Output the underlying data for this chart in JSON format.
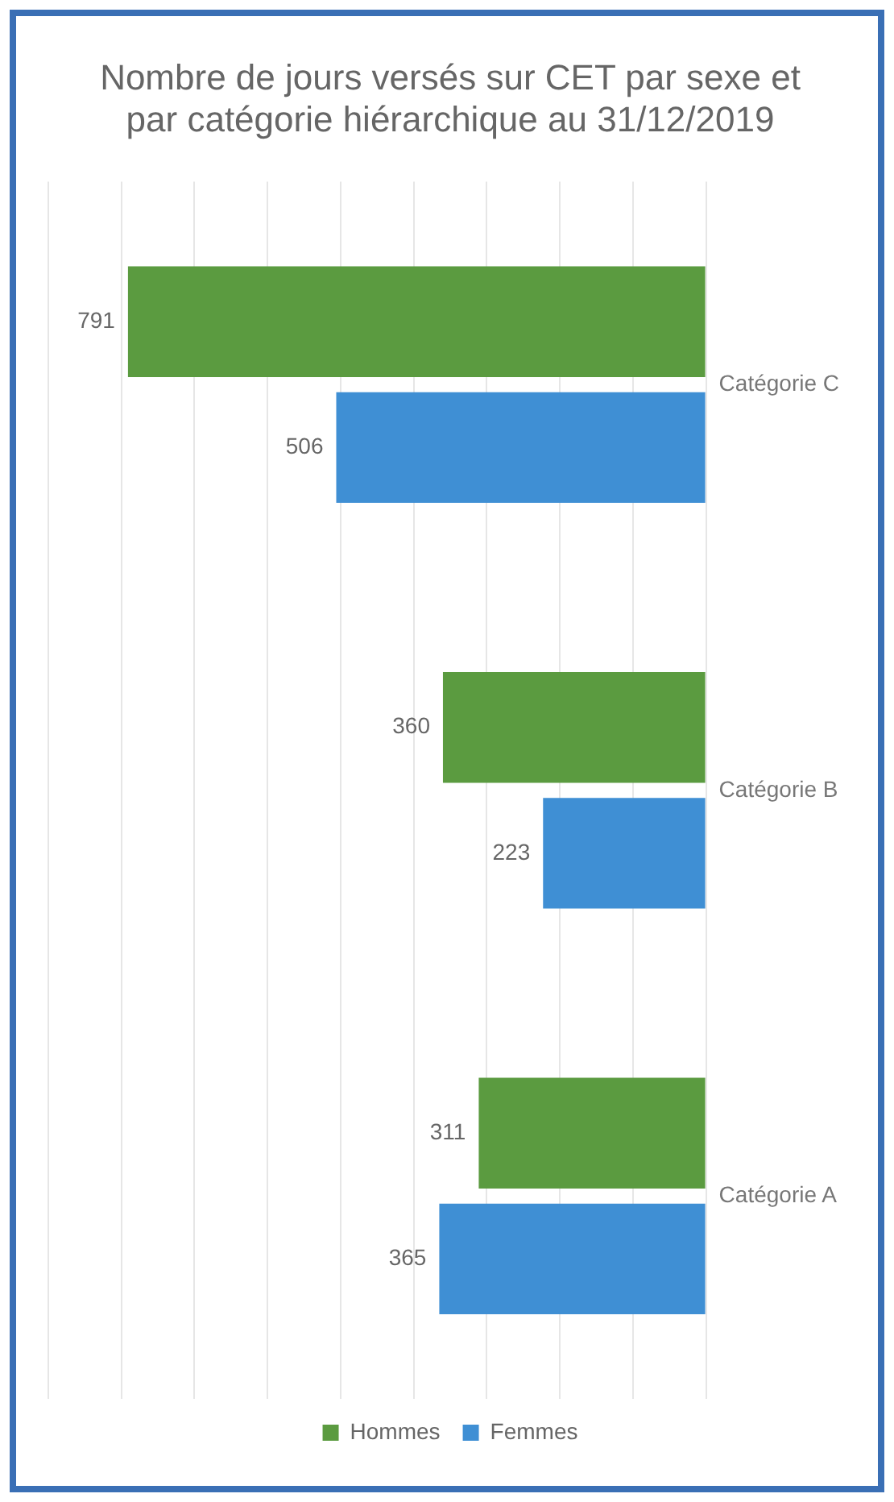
{
  "chart_data": {
    "type": "bar",
    "title": "Nombre de jours versés sur CET par sexe et par catégorie hiérarchique au 31/12/2019",
    "orientation": "horizontal",
    "categories": [
      "Catégorie C",
      "Catégorie B",
      "Catégorie A"
    ],
    "series": [
      {
        "name": "Hommes",
        "color": "#5b9b40",
        "values": [
          791,
          360,
          311
        ]
      },
      {
        "name": "Femmes",
        "color": "#3f8fd4",
        "values": [
          506,
          223,
          365
        ]
      }
    ],
    "xlim": [
      900,
      0
    ],
    "xticks": [
      {
        "value": 0,
        "label": null
      },
      {
        "value": 100,
        "label": null
      },
      {
        "value": 200,
        "label": null
      },
      {
        "value": 300,
        "label": null
      },
      {
        "value": 400,
        "label": null
      },
      {
        "value": 500,
        "label": null
      },
      {
        "value": 600,
        "label": null
      },
      {
        "value": 700,
        "label": null
      },
      {
        "value": 800,
        "label": null
      },
      {
        "value": 900,
        "label": null
      }
    ],
    "grid": "x",
    "legend": "bottom",
    "data_labels": true,
    "tick_labels": "y"
  }
}
